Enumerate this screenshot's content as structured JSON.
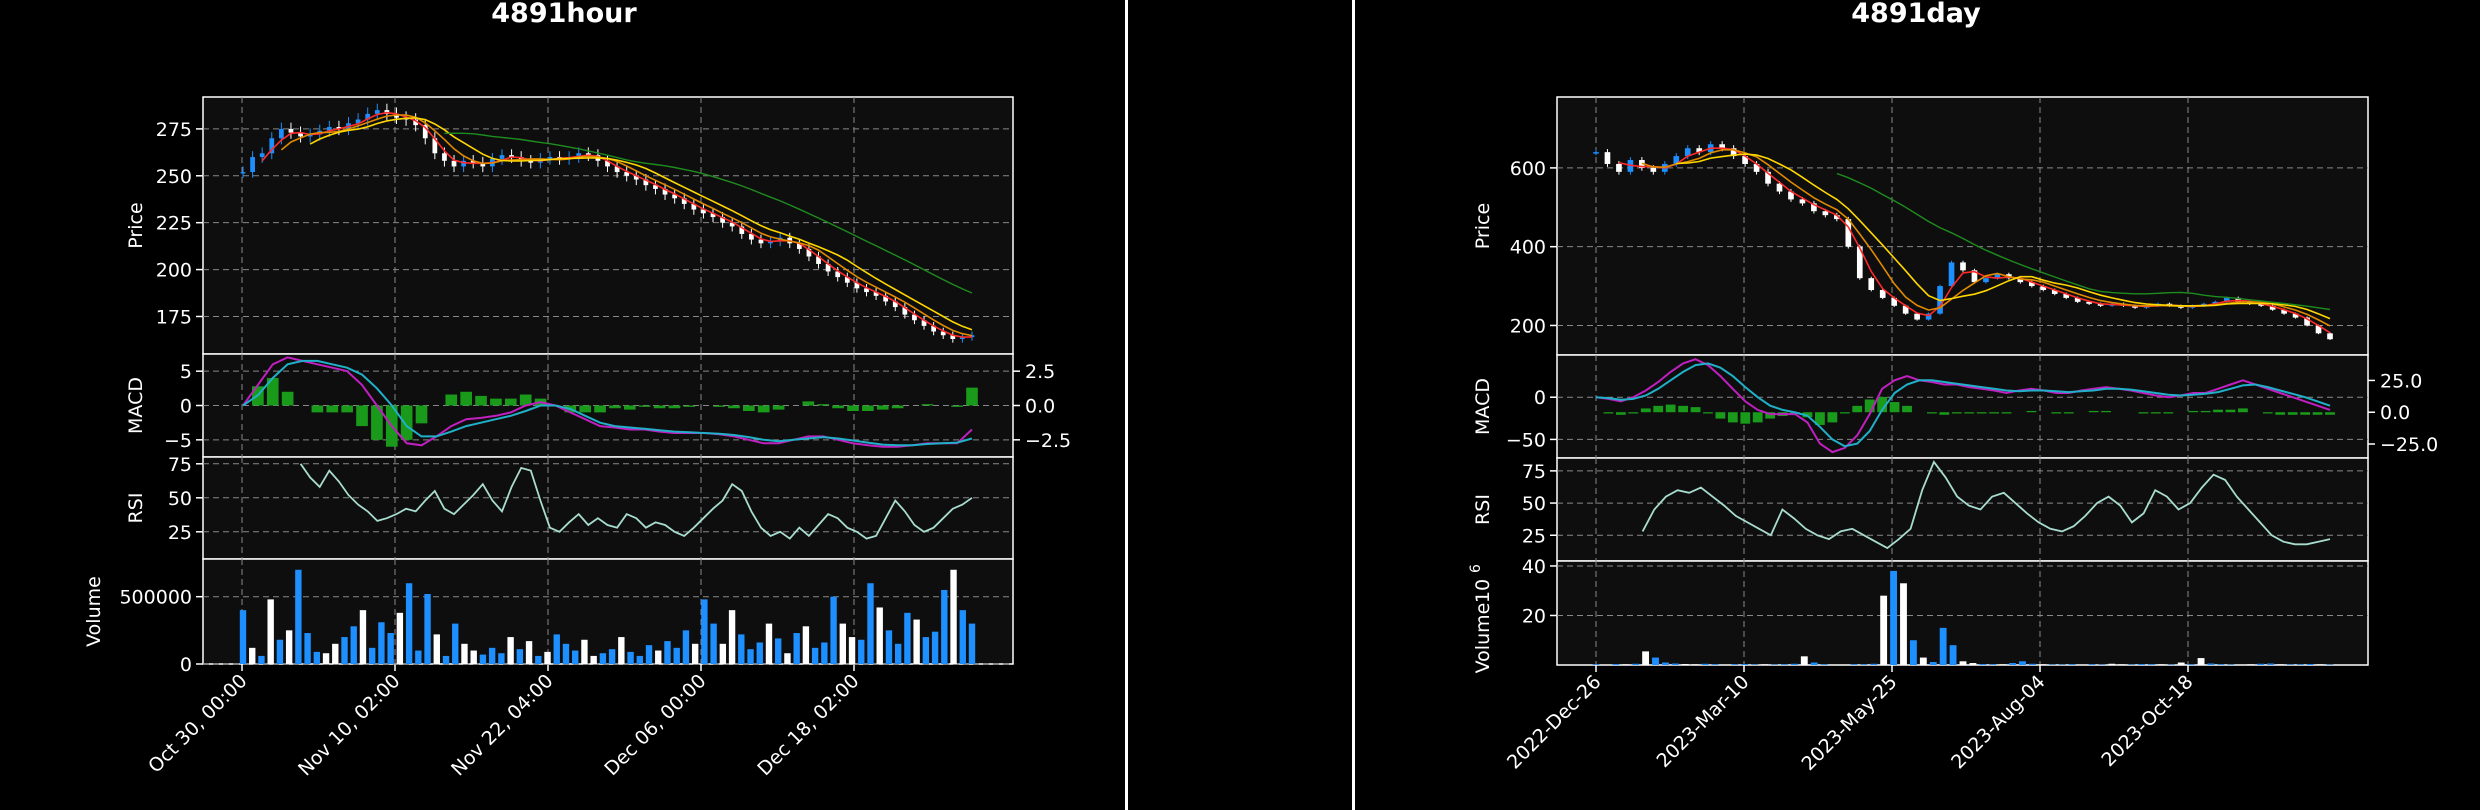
{
  "chart_data": [
    {
      "type": "candlestick",
      "title": "4891hour",
      "x_tick_labels": [
        "Oct 30, 00:00",
        "Nov 10, 02:00",
        "Nov 22, 04:00",
        "Dec 06, 00:00",
        "Dec 18, 02:00"
      ],
      "price": {
        "ylabel": "Price",
        "ylim": [
          155,
          292
        ],
        "yticks": [
          175,
          200,
          225,
          250,
          275
        ],
        "close": [
          252,
          260,
          262,
          270,
          275,
          273,
          271,
          272,
          274,
          276,
          275,
          278,
          280,
          283,
          285,
          283,
          281,
          280,
          277,
          270,
          262,
          258,
          255,
          258,
          257,
          255,
          259,
          261,
          260,
          258,
          257,
          259,
          260,
          259,
          260,
          262,
          261,
          258,
          255,
          252,
          250,
          248,
          245,
          243,
          240,
          238,
          235,
          232,
          230,
          228,
          225,
          223,
          219,
          216,
          214,
          215,
          217,
          214,
          211,
          207,
          203,
          199,
          196,
          193,
          190,
          188,
          186,
          183,
          180,
          176,
          173,
          170,
          167,
          165,
          163,
          164,
          165
        ],
        "ma_fast_color": "#ff2a2a",
        "ma_mid_color": "#e08a00",
        "ma_slow_color": "#ffd700",
        "ma_long_color": "#1e8c1e"
      },
      "macd": {
        "ylabel": "MACD",
        "ylim": [
          -7.5,
          7.5
        ],
        "yticks": [
          -5,
          0,
          5
        ],
        "right_yticks": [
          -2.5,
          0.0,
          2.5
        ],
        "right_ylim": [
          -3.75,
          3.75
        ],
        "macd": [
          0,
          3,
          6,
          7,
          6.5,
          6,
          5.5,
          5,
          3,
          0,
          -3,
          -5.5,
          -5.8,
          -4.5,
          -3,
          -2,
          -1.8,
          -1.5,
          -1,
          0,
          0.5,
          0,
          -1,
          -2,
          -3,
          -3.2,
          -3.5,
          -3.5,
          -3.8,
          -4,
          -4,
          -4,
          -4.2,
          -4.5,
          -5,
          -5.5,
          -5.5,
          -5,
          -4.5,
          -4.5,
          -5,
          -5.5,
          -5.8,
          -6,
          -6,
          -5.8,
          -5.5,
          -5.5,
          -5.5,
          -3.5
        ],
        "signal": [
          0,
          1.5,
          4,
          6,
          6.5,
          6.5,
          6,
          5.5,
          4.5,
          2.5,
          0,
          -3,
          -4.5,
          -4.5,
          -3.8,
          -3,
          -2.5,
          -2,
          -1.5,
          -0.8,
          0,
          0,
          -0.5,
          -1.5,
          -2.5,
          -3,
          -3.2,
          -3.4,
          -3.6,
          -3.8,
          -3.9,
          -4,
          -4.1,
          -4.3,
          -4.6,
          -5,
          -5.2,
          -5,
          -4.8,
          -4.6,
          -4.8,
          -5.1,
          -5.4,
          -5.7,
          -5.8,
          -5.8,
          -5.6,
          -5.5,
          -5.4,
          -4.8
        ],
        "histogram": [
          0,
          1.4,
          2.0,
          1.0,
          0,
          -0.5,
          -0.5,
          -0.5,
          -1.5,
          -2.5,
          -3,
          -2.5,
          -1.3,
          0,
          0.8,
          1.0,
          0.7,
          0.5,
          0.5,
          0.8,
          0.5,
          0,
          -0.5,
          -0.5,
          -0.5,
          -0.2,
          -0.3,
          -0.1,
          -0.2,
          -0.2,
          -0.1,
          0,
          -0.1,
          -0.2,
          -0.4,
          -0.5,
          -0.3,
          0,
          0.3,
          0.1,
          -0.2,
          -0.4,
          -0.4,
          -0.3,
          -0.2,
          0,
          0.1,
          0,
          -0.1,
          1.3
        ],
        "macd_color": "#c020c0",
        "signal_color": "#20b0c8",
        "hist_color": "#1a9a1a"
      },
      "rsi": {
        "ylabel": "RSI",
        "ylim": [
          5,
          80
        ],
        "yticks": [
          25,
          50,
          75
        ],
        "values": [
          null,
          null,
          null,
          null,
          null,
          null,
          75,
          65,
          58,
          70,
          62,
          52,
          45,
          40,
          33,
          35,
          38,
          42,
          40,
          48,
          55,
          42,
          38,
          45,
          52,
          60,
          48,
          40,
          58,
          72,
          70,
          48,
          28,
          25,
          32,
          38,
          30,
          35,
          30,
          28,
          38,
          35,
          28,
          32,
          30,
          25,
          22,
          28,
          35,
          42,
          48,
          60,
          55,
          40,
          28,
          22,
          25,
          20,
          28,
          22,
          30,
          38,
          35,
          28,
          25,
          20,
          22,
          35,
          48,
          40,
          30,
          25,
          28,
          35,
          42,
          45,
          50
        ],
        "color": "#a8dccf"
      },
      "volume": {
        "ylabel": "Volume",
        "ylim": [
          0,
          780000
        ],
        "yticks": [
          0,
          500000
        ],
        "values": [
          400000,
          120000,
          60000,
          480000,
          180000,
          250000,
          700000,
          230000,
          90000,
          80000,
          150000,
          200000,
          280000,
          400000,
          120000,
          310000,
          230000,
          380000,
          600000,
          100000,
          520000,
          220000,
          60000,
          300000,
          150000,
          100000,
          70000,
          120000,
          80000,
          200000,
          110000,
          170000,
          60000,
          90000,
          220000,
          150000,
          100000,
          180000,
          60000,
          80000,
          110000,
          200000,
          90000,
          60000,
          140000,
          100000,
          170000,
          120000,
          250000,
          150000,
          480000,
          300000,
          150000,
          400000,
          220000,
          110000,
          160000,
          300000,
          190000,
          80000,
          230000,
          280000,
          120000,
          160000,
          500000,
          300000,
          200000,
          180000,
          600000,
          420000,
          250000,
          150000,
          380000,
          330000,
          200000,
          240000,
          550000,
          700000,
          400000,
          300000
        ],
        "up_color": "#1e8fff",
        "down_color": "#ffffff"
      }
    },
    {
      "type": "candlestick",
      "title": "4891day",
      "x_tick_labels": [
        "2022-Dec-26",
        "2023-Mar-10",
        "2023-May-25",
        "2023-Aug-04",
        "2023-Oct-18"
      ],
      "price": {
        "ylabel": "Price",
        "ylim": [
          125,
          780
        ],
        "yticks": [
          200,
          400,
          600
        ],
        "close": [
          640,
          610,
          590,
          620,
          600,
          590,
          610,
          630,
          650,
          640,
          660,
          650,
          630,
          610,
          590,
          560,
          540,
          520,
          510,
          490,
          480,
          470,
          400,
          320,
          290,
          270,
          250,
          230,
          215,
          230,
          300,
          360,
          340,
          310,
          320,
          330,
          320,
          310,
          300,
          290,
          280,
          270,
          260,
          255,
          250,
          255,
          250,
          245,
          250,
          255,
          250,
          245,
          250,
          255,
          260,
          270,
          260,
          255,
          250,
          240,
          230,
          220,
          200,
          180,
          165
        ],
        "ma_fast_color": "#ff2a2a",
        "ma_mid_color": "#e08a00",
        "ma_slow_color": "#ffd700",
        "ma_long_color": "#1e8c1e"
      },
      "macd": {
        "ylabel": "MACD",
        "ylim": [
          -72,
          50
        ],
        "yticks": [
          -50,
          0
        ],
        "right_yticks": [
          -25,
          0,
          25
        ],
        "right_ylim": [
          -36,
          45
        ],
        "macd": [
          0,
          -2,
          -5,
          0,
          8,
          18,
          30,
          40,
          45,
          38,
          25,
          10,
          -5,
          -15,
          -20,
          -20,
          -20,
          -30,
          -55,
          -65,
          -60,
          -45,
          -20,
          10,
          20,
          25,
          20,
          18,
          15,
          15,
          12,
          10,
          8,
          5,
          8,
          10,
          8,
          5,
          5,
          8,
          10,
          12,
          10,
          8,
          5,
          2,
          0,
          2,
          5,
          5,
          10,
          15,
          20,
          15,
          10,
          5,
          0,
          -5,
          -10,
          -15
        ],
        "signal": [
          0,
          -1,
          -3,
          -2,
          2,
          10,
          20,
          30,
          38,
          40,
          35,
          25,
          12,
          0,
          -10,
          -15,
          -18,
          -22,
          -35,
          -50,
          -58,
          -55,
          -40,
          -15,
          5,
          15,
          20,
          20,
          18,
          16,
          14,
          12,
          10,
          8,
          7,
          8,
          8,
          7,
          6,
          7,
          8,
          10,
          10,
          9,
          7,
          5,
          3,
          2,
          3,
          4,
          6,
          10,
          14,
          15,
          12,
          8,
          4,
          0,
          -5,
          -10
        ],
        "histogram": [
          0,
          -1,
          -2,
          -1,
          3,
          5,
          6,
          5,
          4,
          -1,
          -5,
          -8,
          -9,
          -8,
          -5,
          -3,
          -1,
          -4,
          -10,
          -8,
          -1,
          5,
          10,
          12,
          8,
          5,
          0,
          -1,
          -2,
          -1,
          -1,
          -1,
          -1,
          -1,
          0,
          1,
          0,
          -1,
          -1,
          0,
          1,
          1,
          0,
          0,
          -1,
          -1,
          -1,
          0,
          1,
          1,
          2,
          2,
          3,
          0,
          -1,
          -2,
          -2,
          -2,
          -2,
          -2
        ],
        "macd_color": "#c020c0",
        "signal_color": "#20b0c8",
        "hist_color": "#1a9a1a"
      },
      "rsi": {
        "ylabel": "RSI",
        "ylim": [
          5,
          85
        ],
        "yticks": [
          25,
          50,
          75
        ],
        "values": [
          null,
          null,
          null,
          null,
          28,
          45,
          55,
          60,
          58,
          62,
          55,
          48,
          40,
          35,
          30,
          25,
          45,
          38,
          30,
          25,
          22,
          28,
          30,
          25,
          20,
          15,
          22,
          30,
          60,
          82,
          70,
          55,
          48,
          45,
          55,
          58,
          50,
          42,
          35,
          30,
          28,
          32,
          40,
          50,
          55,
          48,
          35,
          42,
          60,
          55,
          45,
          50,
          62,
          72,
          68,
          55,
          45,
          35,
          25,
          20,
          18,
          18,
          20,
          22
        ],
        "color": "#a8dccf"
      },
      "volume": {
        "ylabel": "Volume",
        "multiplier_label": "10",
        "multiplier_exp": "6",
        "ylim": [
          0,
          42
        ],
        "yticks": [
          20,
          40
        ],
        "values": [
          0.3,
          0.2,
          0.4,
          0.3,
          0.5,
          5.5,
          3,
          1,
          0.6,
          0.4,
          0.3,
          0.5,
          0.3,
          0.2,
          0.3,
          0.4,
          0.2,
          0.3,
          0.2,
          0.3,
          0.5,
          3.5,
          1,
          0.3,
          0.2,
          0.2,
          0.3,
          0.3,
          0.5,
          28,
          38,
          33,
          10,
          3,
          1.2,
          15,
          8,
          1.5,
          0.8,
          0.4,
          0.3,
          0.3,
          0.8,
          1.5,
          0.5,
          0.3,
          0.2,
          0.2,
          0.3,
          0.2,
          0.3,
          0.2,
          0.5,
          0.3,
          0.2,
          0.4,
          0.3,
          0.3,
          0.2,
          1,
          0.3,
          2.8,
          0.6,
          0.3,
          0.2,
          0.2,
          0.3,
          0.5,
          0.6,
          0.3,
          0.2,
          0.3,
          0.4,
          0.3,
          0.2
        ],
        "up_color": "#1e8fff",
        "down_color": "#ffffff"
      }
    }
  ]
}
